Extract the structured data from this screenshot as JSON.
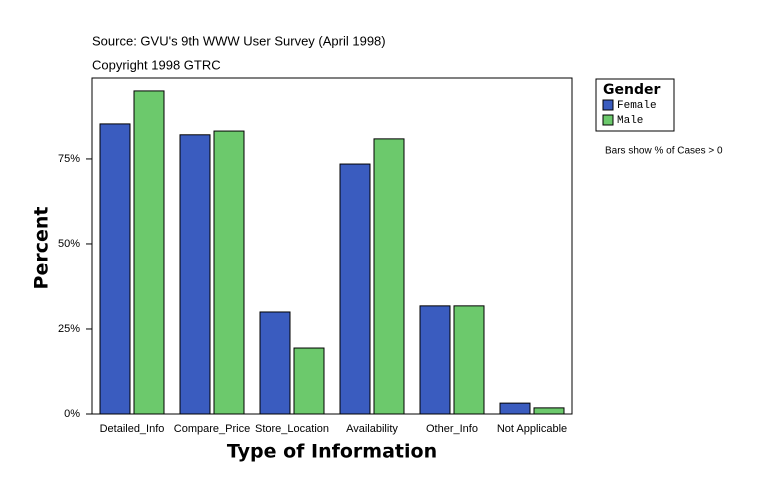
{
  "chart_data": {
    "type": "bar",
    "title": "Source: GVU's 9th WWW User Survey (April 1998)",
    "subtitle": "Copyright 1998 GTRC",
    "x_label": "Type of Information",
    "y_label": "Percent",
    "note": "Bars show % of Cases > 0",
    "legend_title": "Gender",
    "categories": [
      "Detailed_Info",
      "Compare_Price",
      "Store_Location",
      "Availability",
      "Other_Info",
      "Not Applicable"
    ],
    "series": [
      {
        "name": "Female",
        "color": "#3a5cbf",
        "values": [
          85.3,
          82.1,
          30.0,
          73.5,
          31.8,
          3.2
        ]
      },
      {
        "name": "Male",
        "color": "#6cc96c",
        "values": [
          95.0,
          83.2,
          19.4,
          80.9,
          31.8,
          1.8
        ]
      }
    ],
    "ylim": [
      0,
      98.8
    ],
    "yticks": [
      {
        "value": 0,
        "label": "0%"
      },
      {
        "value": 25,
        "label": "25%"
      },
      {
        "value": 50,
        "label": "50%"
      },
      {
        "value": 75,
        "label": "75%"
      }
    ]
  }
}
